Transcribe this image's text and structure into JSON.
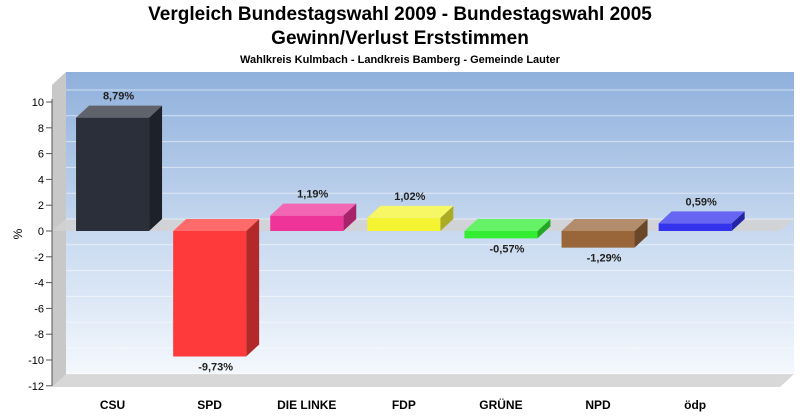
{
  "chart_data": {
    "type": "bar",
    "title": "Vergleich Bundestagswahl 2009 - Bundestagswahl 2005",
    "subtitle": "Gewinn/Verlust Erststimmen",
    "caption": "Wahlkreis Kulmbach - Landkreis Bamberg - Gemeinde Lauter",
    "ylabel": "%",
    "ylim": [
      -12,
      11
    ],
    "yticks": [
      10,
      8,
      6,
      4,
      2,
      0,
      -2,
      -4,
      -6,
      -8,
      -10,
      -12
    ],
    "categories": [
      "CSU",
      "SPD",
      "DIE LINKE",
      "FDP",
      "GRÜNE",
      "NPD",
      "ödp"
    ],
    "values": [
      8.79,
      -9.73,
      1.19,
      1.02,
      -0.57,
      -1.29,
      0.59
    ],
    "value_labels": [
      "8,79%",
      "-9,73%",
      "1,19%",
      "1,02%",
      "-0,57%",
      "-1,29%",
      "0,59%"
    ],
    "colors": [
      "#2b2f3a",
      "#ff3a3a",
      "#ee3399",
      "#f4f433",
      "#33ee33",
      "#99663a",
      "#3333ee"
    ],
    "grid": true
  }
}
